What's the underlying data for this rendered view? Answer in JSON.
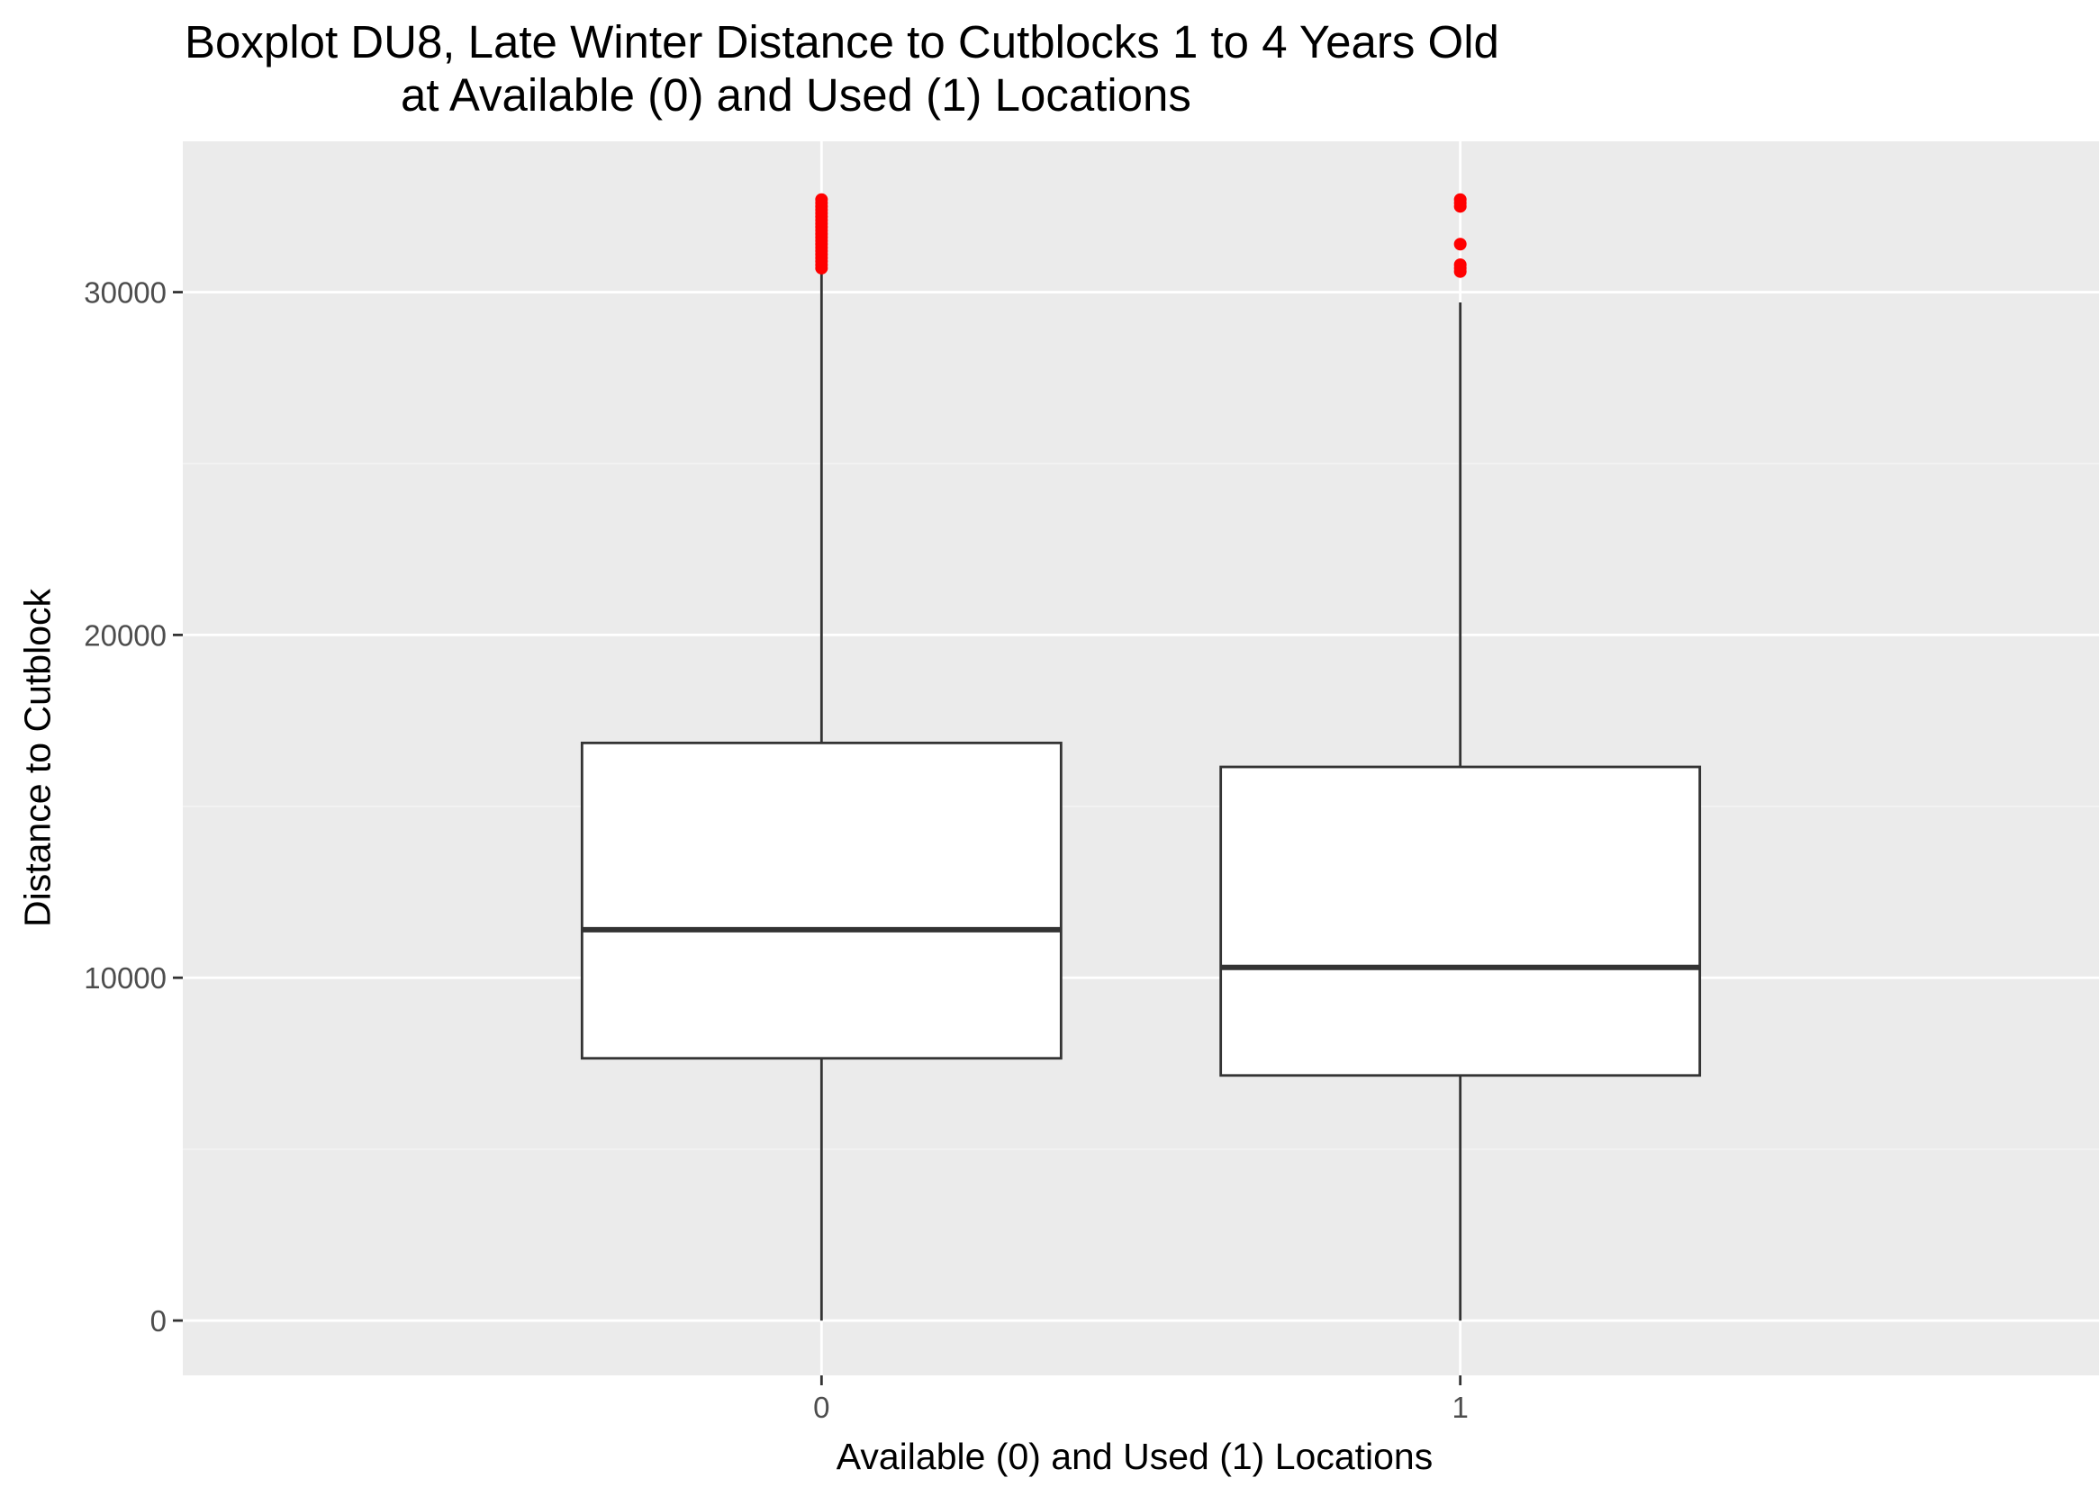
{
  "chart_data": {
    "type": "boxplot",
    "title": "Boxplot DU8, Late Winter Distance to Cutblocks 1 to 4 Years Old",
    "subtitle": "at Available (0) and Used (1) Locations",
    "xlabel": "Available (0) and Used (1) Locations",
    "ylabel": "Distance to Cutblock",
    "categories": [
      "0",
      "1"
    ],
    "yticks": [
      0,
      10000,
      20000,
      30000
    ],
    "ylim": [
      -1600,
      34400
    ],
    "grid": true,
    "outlier_color": "#ff0000",
    "series": [
      {
        "category": "0",
        "whisker_low": 0,
        "q1": 7650,
        "median": 11400,
        "q3": 16850,
        "whisker_high": 30600,
        "outliers": [
          30700,
          30800,
          30900,
          31000,
          31100,
          31200,
          31300,
          31400,
          31500,
          31600,
          31700,
          31800,
          31900,
          32000,
          32100,
          32200,
          32300,
          32400,
          32500,
          32600,
          32700
        ]
      },
      {
        "category": "1",
        "whisker_low": 0,
        "q1": 7150,
        "median": 10300,
        "q3": 16150,
        "whisker_high": 29700,
        "outliers": [
          30600,
          30700,
          30800,
          31400,
          32500,
          32600,
          32700
        ]
      }
    ]
  },
  "colors": {
    "panel_background": "#ebebeb",
    "grid_major": "#ffffff",
    "grid_minor": "#f5f5f5",
    "box_fill": "#ffffff",
    "box_line": "#333333",
    "tick_text": "#4d4d4d",
    "outlier": "#ff0000"
  }
}
